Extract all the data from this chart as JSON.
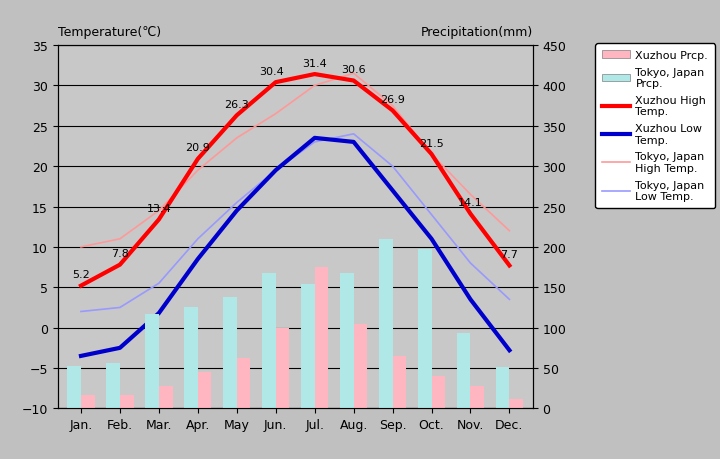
{
  "months": [
    "Jan.",
    "Feb.",
    "Mar.",
    "Apr.",
    "May",
    "Jun.",
    "Jul.",
    "Aug.",
    "Sep.",
    "Oct.",
    "Nov.",
    "Dec."
  ],
  "xuzhou_high": [
    5.2,
    7.8,
    13.4,
    20.9,
    26.3,
    30.4,
    31.4,
    30.6,
    26.9,
    21.5,
    14.1,
    7.7
  ],
  "xuzhou_low": [
    -3.5,
    -2.5,
    1.8,
    8.5,
    14.5,
    19.5,
    23.5,
    23.0,
    17.0,
    11.0,
    3.5,
    -2.8
  ],
  "tokyo_high": [
    10.0,
    11.0,
    14.5,
    19.5,
    23.5,
    26.5,
    30.0,
    31.5,
    27.5,
    21.5,
    16.5,
    12.0
  ],
  "tokyo_low": [
    2.0,
    2.5,
    5.5,
    11.0,
    15.5,
    19.5,
    23.0,
    24.0,
    20.0,
    14.0,
    8.0,
    3.5
  ],
  "xuzhou_prcp_mm": [
    17,
    17,
    28,
    45,
    62,
    100,
    175,
    105,
    65,
    40,
    28,
    12
  ],
  "tokyo_prcp_mm": [
    52,
    56,
    117,
    125,
    138,
    168,
    154,
    168,
    210,
    197,
    93,
    51
  ],
  "temp_ylim": [
    -10,
    35
  ],
  "prcp_ylim": [
    0,
    450
  ],
  "bg_color": "#c0c0c0",
  "plot_bg_color": "#c8c8c8",
  "xuzhou_high_color": "#ff0000",
  "xuzhou_low_color": "#0000cc",
  "tokyo_high_color": "#ff9999",
  "tokyo_low_color": "#9999ff",
  "xuzhou_prcp_color": "#ffb6c1",
  "tokyo_prcp_color": "#b0e8e8",
  "grid_color": "#000000",
  "title_left": "Temperature(℃)",
  "title_right": "Precipitation(mm)"
}
